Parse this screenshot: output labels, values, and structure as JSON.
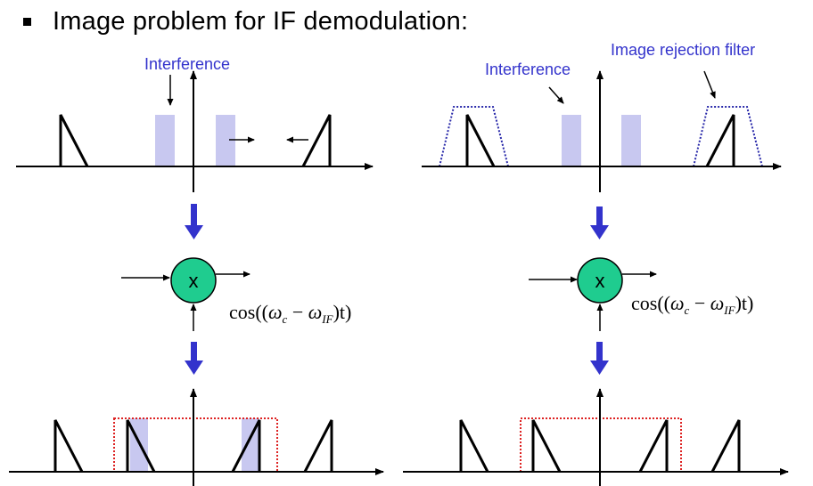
{
  "heading": {
    "title": "Image problem for IF demodulation:"
  },
  "left_panel": {
    "interference_label": "Interference",
    "mixer_symbol": "x",
    "lo_signal": {
      "prefix": "cos((",
      "omega": "ω",
      "c_sub": "c",
      "minus": " − ",
      "if_sub": "IF",
      "suffix": ")t)"
    }
  },
  "right_panel": {
    "interference_label": "Interference",
    "filter_label": "Image rejection filter",
    "mixer_symbol": "x",
    "lo_signal": {
      "prefix": "cos((",
      "omega": "ω",
      "c_sub": "c",
      "minus": " − ",
      "if_sub": "IF",
      "suffix": ")t)"
    }
  },
  "colors": {
    "interference_fill": "#c8c8f0",
    "label_blue": "#3333cc",
    "flow_arrow": "#3333cc",
    "mixer_fill": "#1fcc8f",
    "filter_outline": "#2a2aaa",
    "if_filter_outline": "#dd2222"
  }
}
